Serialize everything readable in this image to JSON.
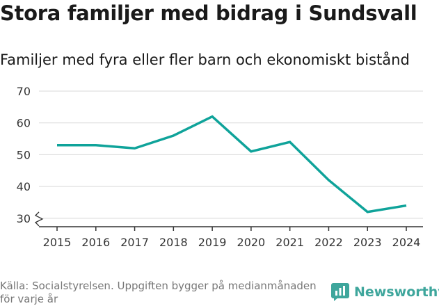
{
  "chart_data": {
    "type": "line",
    "title": "Stora familjer med bidrag i Sundsvall",
    "subtitle": "Familjer med fyra eller fler barn och ekonomiskt bistånd",
    "categories": [
      "2015",
      "2016",
      "2017",
      "2018",
      "2019",
      "2020",
      "2021",
      "2022",
      "2023",
      "2024"
    ],
    "series": [
      {
        "name": "Familjer med fyra eller fler barn och ekonomiskt bistånd",
        "values": [
          53,
          53,
          52,
          56,
          62,
          51,
          54,
          42,
          32,
          34
        ]
      }
    ],
    "yticks": [
      30,
      40,
      50,
      60,
      70
    ],
    "ylim": [
      28,
      70
    ],
    "xlabel": "",
    "ylabel": "",
    "grid": true,
    "axis_break": true,
    "line_color": "#0fa39a",
    "grid_color": "#d9d9d9",
    "axis_color": "#333333"
  },
  "footer": {
    "source": "Källa: Socialstyrelsen. Uppgiften bygger på medianmånaden för varje år",
    "brand": "Newsworthy",
    "brand_color": "#3ea69c",
    "brand_icon": "newsworthy-logo-icon"
  }
}
